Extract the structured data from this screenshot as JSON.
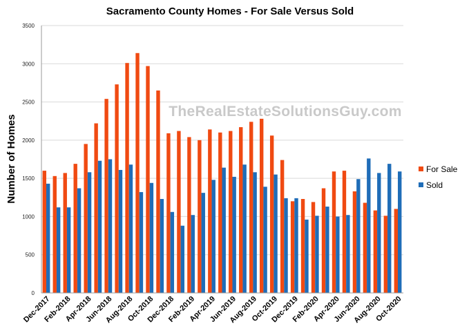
{
  "chart_data": {
    "type": "bar",
    "title": "Sacramento County Homes - For Sale Versus Sold",
    "ylabel": "Number of Homes",
    "xlabel": "",
    "watermark": "TheRealEstateSolutionsGuy.com",
    "ylim": [
      0,
      3500
    ],
    "yticks": [
      0,
      500,
      1000,
      1500,
      2000,
      2500,
      3000,
      3500
    ],
    "grid": true,
    "legend_position": "right",
    "categories": [
      "Dec-2017",
      "Jan-2018",
      "Feb-2018",
      "Mar-2018",
      "Apr-2018",
      "May-2018",
      "Jun-2018",
      "Jul-2018",
      "Aug-2018",
      "Sep-2018",
      "Oct-2018",
      "Nov-2018",
      "Dec-2018",
      "Jan-2019",
      "Feb-2019",
      "Mar-2019",
      "Apr-2019",
      "May-2019",
      "Jun-2019",
      "Jul-2019",
      "Aug-2019",
      "Sep-2019",
      "Oct-2019",
      "Nov-2019",
      "Dec-2019",
      "Jan-2020",
      "Feb-2020",
      "Mar-2020",
      "Apr-2020",
      "May-2020",
      "Jun-2020",
      "Jul-2020",
      "Aug-2020",
      "Sep-2020",
      "Oct-2020"
    ],
    "x_tick_labels": [
      "Dec-2017",
      "Feb-2018",
      "Apr-2018",
      "Jun-2018",
      "Aug-2018",
      "Oct-2018",
      "Dec-2018",
      "Feb-2019",
      "Apr-2019",
      "Jun-2019",
      "Aug-2019",
      "Oct-2019",
      "Dec-2019",
      "Feb-2020",
      "Apr-2020",
      "Jun-2020",
      "Aug-2020",
      "Oct-2020"
    ],
    "series": [
      {
        "name": "For Sale",
        "color": "#f04a12",
        "values": [
          1600,
          1530,
          1570,
          1690,
          1950,
          2220,
          2540,
          2730,
          3010,
          3140,
          2970,
          2650,
          2090,
          2120,
          2040,
          2000,
          2140,
          2100,
          2120,
          2170,
          2240,
          2280,
          2060,
          1740,
          1200,
          1230,
          1190,
          1370,
          1590,
          1600,
          1330,
          1180,
          1080,
          1010,
          1100
        ]
      },
      {
        "name": "Sold",
        "color": "#1f6db8",
        "values": [
          1430,
          1120,
          1120,
          1370,
          1580,
          1730,
          1750,
          1610,
          1680,
          1320,
          1440,
          1230,
          1060,
          880,
          1020,
          1310,
          1480,
          1640,
          1520,
          1680,
          1580,
          1390,
          1550,
          1240,
          1240,
          960,
          1010,
          1130,
          1000,
          1020,
          1490,
          1760,
          1570,
          1690,
          1590
        ]
      }
    ]
  }
}
